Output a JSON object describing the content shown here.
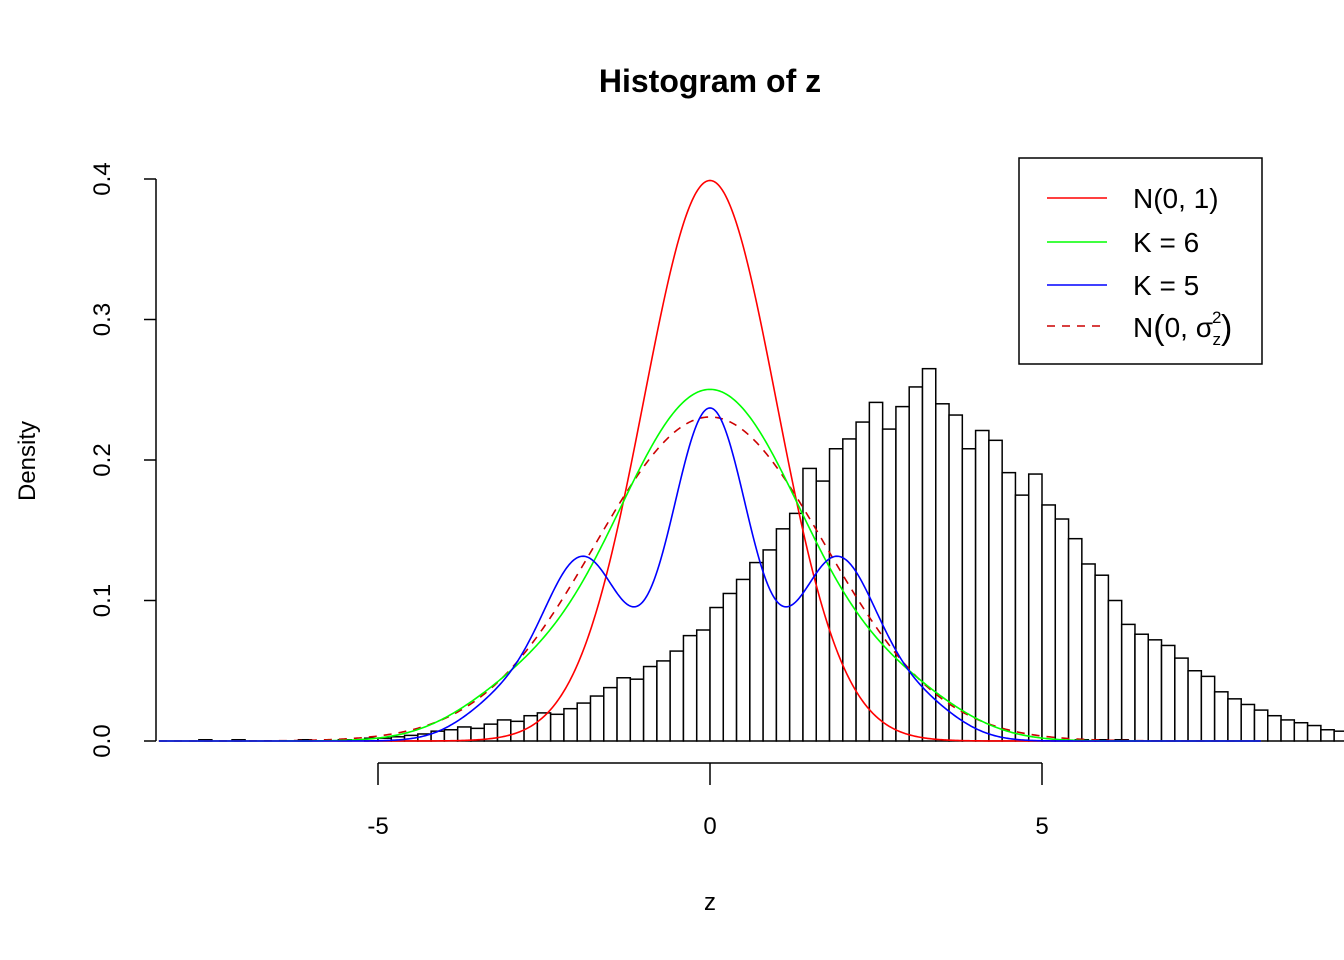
{
  "chart_data": {
    "type": "histogram",
    "title": "Histogram of z",
    "xlabel": "z",
    "ylabel": "Density",
    "xlim": [
      -8.3,
      8.3
    ],
    "ylim": [
      0,
      0.4
    ],
    "x_ticks": [
      -5,
      0,
      5
    ],
    "x_tick_labels": [
      "-5",
      "0",
      "5"
    ],
    "y_ticks": [
      0.0,
      0.1,
      0.2,
      0.3,
      0.4
    ],
    "y_tick_labels": [
      "0.0",
      "0.1",
      "0.2",
      "0.3",
      "0.4"
    ],
    "grid": false,
    "legend_position": "top-right",
    "legend": [
      {
        "label": "N(0, 1)",
        "color": "#ff0000",
        "dash": false
      },
      {
        "label": "K = 6",
        "color": "#00ff00",
        "dash": false
      },
      {
        "label": "K = 5",
        "color": "#0000ff",
        "dash": false
      },
      {
        "label_prefix": "N",
        "label_body": "0, σ",
        "label_sup": "2",
        "label_sub": "z",
        "color": "#cc0000",
        "dash": true
      }
    ],
    "bin_width": 0.2,
    "bins": {
      "x_start": -5.2,
      "densities": [
        0.002,
        0.002,
        0.003,
        0.004,
        0.005,
        0.007,
        0.008,
        0.01,
        0.009,
        0.012,
        0.015,
        0.014,
        0.018,
        0.02,
        0.019,
        0.023,
        0.027,
        0.032,
        0.038,
        0.045,
        0.044,
        0.053,
        0.057,
        0.064,
        0.075,
        0.079,
        0.095,
        0.105,
        0.115,
        0.127,
        0.136,
        0.151,
        0.162,
        0.194,
        0.185,
        0.208,
        0.215,
        0.227,
        0.241,
        0.222,
        0.238,
        0.252,
        0.265,
        0.24,
        0.232,
        0.208,
        0.221,
        0.214,
        0.191,
        0.175,
        0.19,
        0.168,
        0.158,
        0.144,
        0.126,
        0.118,
        0.1,
        0.083,
        0.076,
        0.072,
        0.068,
        0.059,
        0.05,
        0.046,
        0.035,
        0.03,
        0.026,
        0.022,
        0.018,
        0.015,
        0.013,
        0.011,
        0.008,
        0.007,
        0.005,
        0.004,
        0.003,
        0.002
      ],
      "outliers": [
        {
          "x": -7.7,
          "density": 0.001
        },
        {
          "x": -7.2,
          "density": 0.001
        },
        {
          "x": -6.2,
          "density": 0.001
        },
        {
          "x": -5.6,
          "density": 0.001
        },
        {
          "x": 5.5,
          "density": 0.001
        },
        {
          "x": 5.8,
          "density": 0.001
        },
        {
          "x": 6.1,
          "density": 0.001
        }
      ]
    },
    "series": [
      {
        "name": "N(0, 1)",
        "color": "#ff0000",
        "kind": "normal",
        "mean": 0,
        "sd": 1
      },
      {
        "name": "K = 6",
        "color": "#00ff00",
        "kind": "mixture",
        "sd": 0.9,
        "means": [
          -2.9,
          -1.6,
          -0.55,
          0.55,
          1.6,
          2.9
        ],
        "weights": [
          0.07,
          0.12,
          0.31,
          0.31,
          0.12,
          0.07
        ]
      },
      {
        "name": "K = 5",
        "color": "#0000ff",
        "kind": "mixture",
        "sd": 0.6,
        "means": [
          -3.1,
          -1.9,
          0,
          1.9,
          3.1
        ],
        "weights": [
          0.04,
          0.19,
          0.354,
          0.19,
          0.04
        ]
      },
      {
        "name": "N(0, σz²)",
        "color": "#cc0000",
        "kind": "normal",
        "mean": 0,
        "sd": 1.73,
        "dash": true
      }
    ]
  }
}
